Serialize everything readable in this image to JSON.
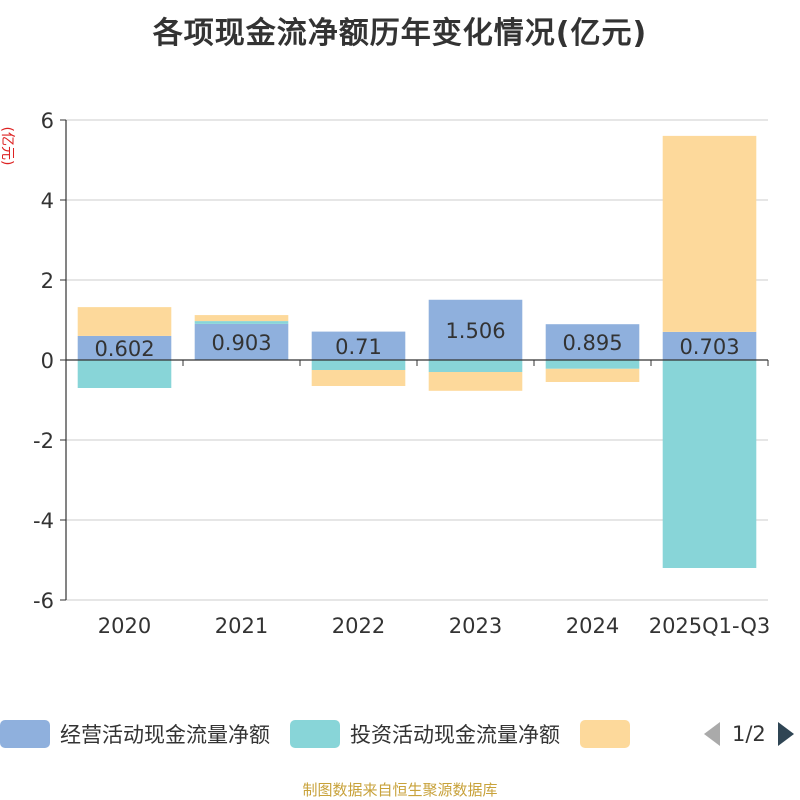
{
  "chart_data": {
    "type": "bar",
    "stacked": true,
    "title": "各项现金流净额历年变化情况(亿元)",
    "ylabel": "(亿元)",
    "categories": [
      "2020",
      "2021",
      "2022",
      "2023",
      "2024",
      "2025Q1-Q3"
    ],
    "ylim": [
      -6,
      6
    ],
    "yticks": [
      -6,
      -4,
      -2,
      0,
      2,
      4,
      6
    ],
    "series": [
      {
        "name": "经营活动现金流量净额",
        "color": "#8fb0dd",
        "values": [
          0.602,
          0.903,
          0.71,
          1.506,
          0.895,
          0.703
        ],
        "labels": [
          "0.602",
          "0.903",
          "0.71",
          "1.506",
          "0.895",
          "0.703"
        ]
      },
      {
        "name": "投资活动现金流量净额",
        "color": "#88d5d8",
        "values": [
          -0.7,
          0.07,
          -0.25,
          -0.3,
          -0.22,
          -5.2
        ]
      },
      {
        "name": "",
        "color": "#fdd99b",
        "values": [
          0.72,
          0.15,
          -0.4,
          -0.47,
          -0.33,
          4.9
        ]
      }
    ]
  },
  "legend": {
    "items": [
      {
        "label": "经营活动现金流量净额",
        "color": "#8fb0dd"
      },
      {
        "label": "投资活动现金流量净额",
        "color": "#88d5d8"
      },
      {
        "label": "",
        "color": "#fdd99b"
      }
    ],
    "page_label": "1/2"
  },
  "footer": "制图数据来自恒生聚源数据库"
}
